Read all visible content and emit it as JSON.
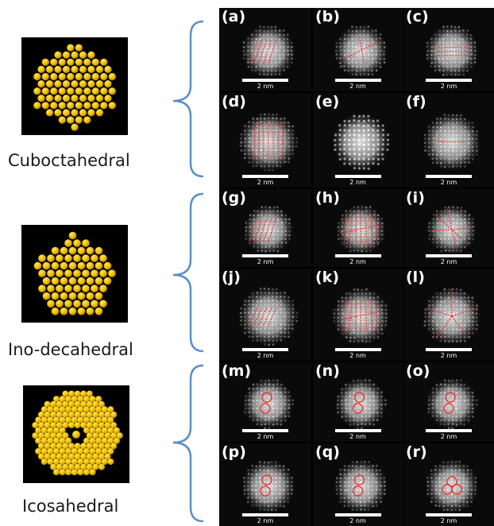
{
  "models": [
    {
      "id": "cubo",
      "name": "Cuboctahedral",
      "shape": "hexagon"
    },
    {
      "id": "ino",
      "name": "Ino-decahedral",
      "shape": "pentagon"
    },
    {
      "id": "ico",
      "name": "Icosahedral",
      "shape": "decagon"
    }
  ],
  "panels": [
    {
      "label": "(a)",
      "pattern": "lines-diag"
    },
    {
      "label": "(b)",
      "pattern": "lines-cross"
    },
    {
      "label": "(c)",
      "pattern": "lines-horiz"
    },
    {
      "label": "(d)",
      "pattern": "lines-vert"
    },
    {
      "label": "(e)",
      "pattern": "lattice"
    },
    {
      "label": "(f)",
      "pattern": "lines-horiz-short"
    },
    {
      "label": "(g)",
      "pattern": "lines-diag"
    },
    {
      "label": "(h)",
      "pattern": "lines-fan"
    },
    {
      "label": "(i)",
      "pattern": "lines-star"
    },
    {
      "label": "(j)",
      "pattern": "lines-diag-short"
    },
    {
      "label": "(k)",
      "pattern": "lines-fan"
    },
    {
      "label": "(l)",
      "pattern": "star5"
    },
    {
      "label": "(m)",
      "pattern": "rings"
    },
    {
      "label": "(n)",
      "pattern": "rings"
    },
    {
      "label": "(o)",
      "pattern": "rings"
    },
    {
      "label": "(p)",
      "pattern": "rings"
    },
    {
      "label": "(q)",
      "pattern": "rings"
    },
    {
      "label": "(r)",
      "pattern": "rings3"
    }
  ],
  "scale_text": "2 nm",
  "colors": {
    "bracket": "#5b8fc9",
    "atom": "#f2c200",
    "atom_highlight": "#ffe35a",
    "atom_shadow": "#b58a00",
    "overlay": "#e8342e",
    "stem_background": "#000000"
  }
}
